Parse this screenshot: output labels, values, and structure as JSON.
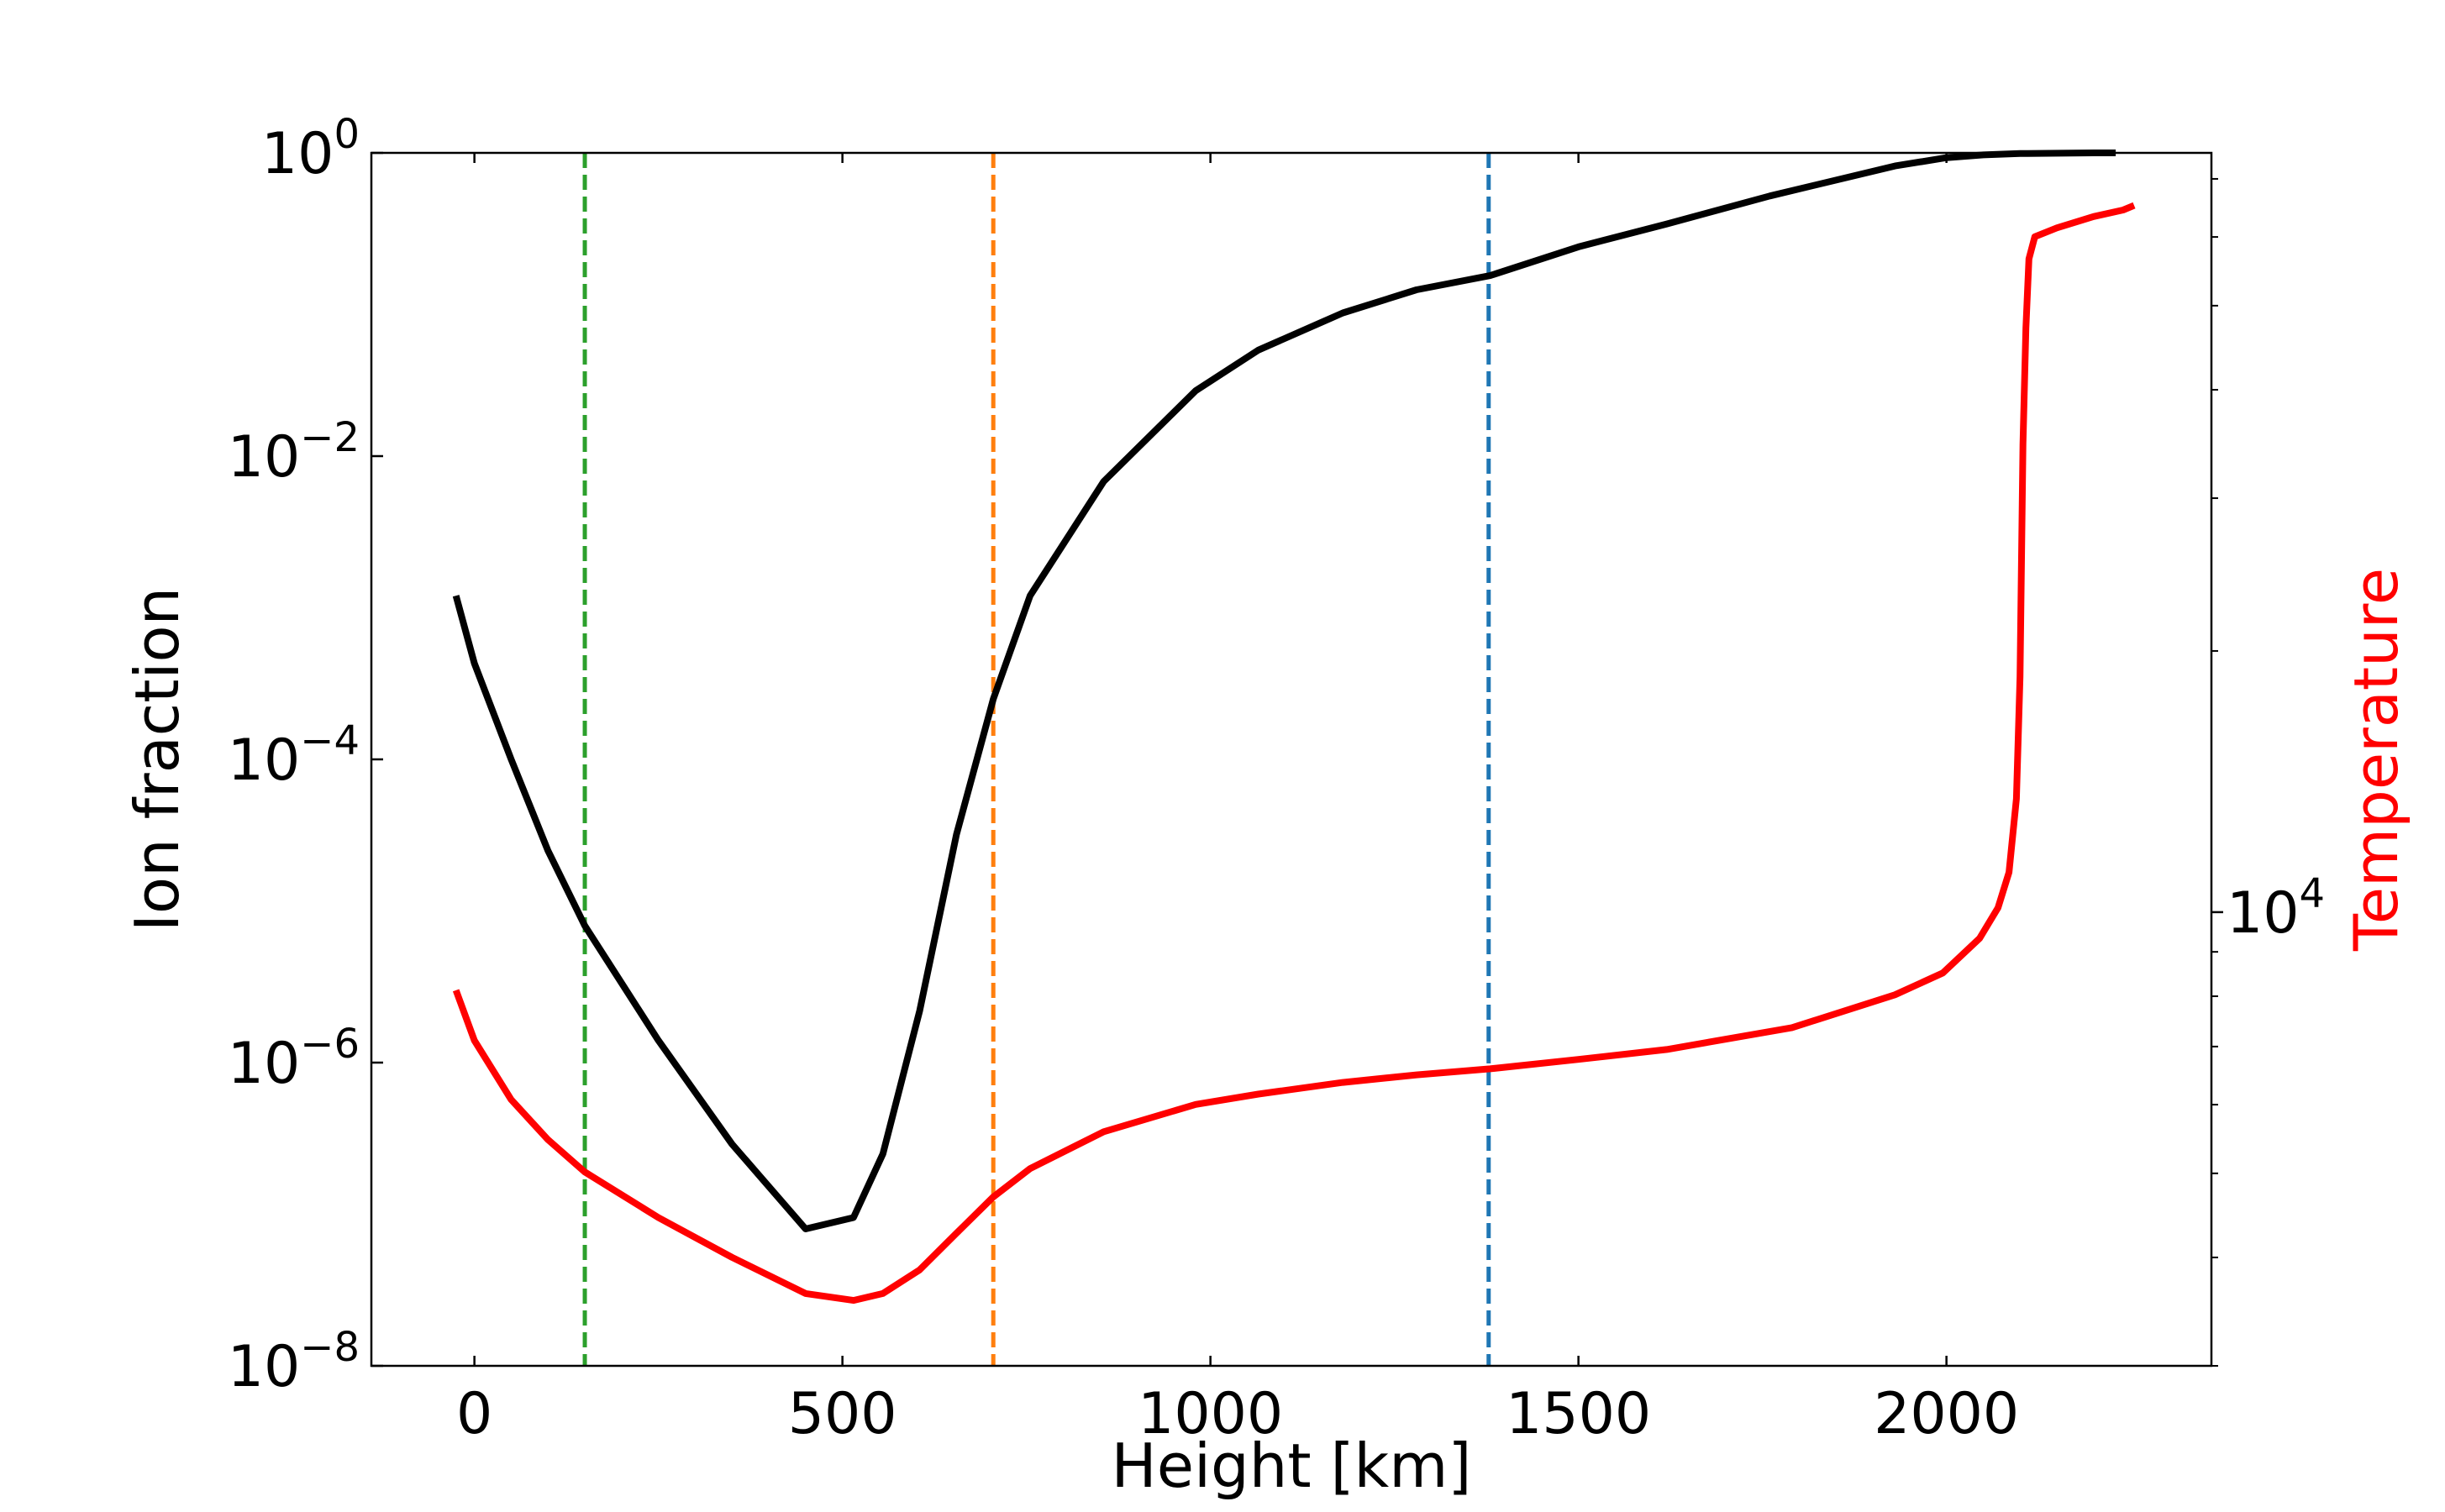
{
  "chart_data": {
    "type": "line",
    "xlabel": "Height [km]",
    "ylabel_left": "Ion fraction",
    "ylabel_right": "Temperature",
    "xlim": [
      -140,
      2360
    ],
    "ylim_left": [
      1e-08,
      1
    ],
    "yscale_left": "log",
    "ylim_right": [
      3000,
      75000
    ],
    "yscale_right": "log",
    "x_ticks": [
      0,
      500,
      1000,
      1500,
      2000
    ],
    "x_tick_labels": [
      "0",
      "500",
      "1000",
      "1500",
      "2000"
    ],
    "left_ticks": [
      {
        "base": "10",
        "exp": "0"
      },
      {
        "base": "10",
        "exp": "−2"
      },
      {
        "base": "10",
        "exp": "−4"
      },
      {
        "base": "10",
        "exp": "−6"
      },
      {
        "base": "10",
        "exp": "−8"
      }
    ],
    "right_ticks": [
      {
        "base": "10",
        "exp": "4"
      }
    ],
    "grid": false,
    "legend": "none",
    "colors": {
      "ion_fraction": "#000000",
      "temperature": "#ff0000",
      "vline_green": "#2ca02c",
      "vline_orange": "#ff7f0e",
      "vline_blue": "#1f77b4"
    },
    "series": [
      {
        "axis": "left",
        "x": [
          -25,
          0,
          50,
          100,
          150,
          250,
          350,
          450,
          515,
          555,
          605,
          655,
          705,
          755,
          855,
          980,
          1065,
          1180,
          1280,
          1380,
          1500,
          1620,
          1760,
          1930,
          2000,
          2050,
          2100,
          2200,
          2230
        ],
        "y": [
          0.0012,
          0.00043,
          0.0001,
          2.5e-05,
          8e-06,
          1.4e-06,
          2.9e-07,
          8e-08,
          9.5e-08,
          2.5e-07,
          2.2e-06,
          3.2e-05,
          0.00025,
          0.0012,
          0.0068,
          0.027,
          0.05,
          0.088,
          0.125,
          0.155,
          0.24,
          0.34,
          0.52,
          0.82,
          0.93,
          0.97,
          0.99,
          1.0,
          1.0
        ]
      },
      {
        "axis": "left",
        "x": [
          -25,
          0,
          50,
          100,
          150,
          250,
          350,
          450,
          515,
          555,
          605,
          655,
          705,
          755,
          855,
          980,
          1065,
          1180,
          1280,
          1380,
          1500,
          1620,
          1790,
          1930,
          1995,
          2045,
          2070,
          2085,
          2095,
          2100,
          2104,
          2108,
          2112,
          2120,
          2150,
          2200,
          2240,
          2255
        ],
        "y": [
          3e-06,
          1.4e-06,
          5.7e-07,
          3.1e-07,
          1.9e-07,
          9.5e-08,
          5.2e-08,
          3e-08,
          2.7e-08,
          3e-08,
          4.3e-08,
          7.5e-08,
          1.3e-07,
          2e-07,
          3.5e-07,
          5.3e-07,
          6.2e-07,
          7.4e-07,
          8.3e-07,
          9.1e-07,
          1.05e-06,
          1.22e-06,
          1.7e-06,
          2.8e-06,
          3.9e-06,
          6.6e-06,
          1.05e-05,
          1.8e-05,
          5.5e-05,
          0.00035,
          0.012,
          0.07,
          0.2,
          0.28,
          0.32,
          0.38,
          0.42,
          0.45
        ]
      }
    ],
    "vertical_lines": [
      {
        "x": 150,
        "color": "#2ca02c"
      },
      {
        "x": 705,
        "color": "#ff7f0e"
      },
      {
        "x": 1378,
        "color": "#1f77b4"
      }
    ]
  }
}
